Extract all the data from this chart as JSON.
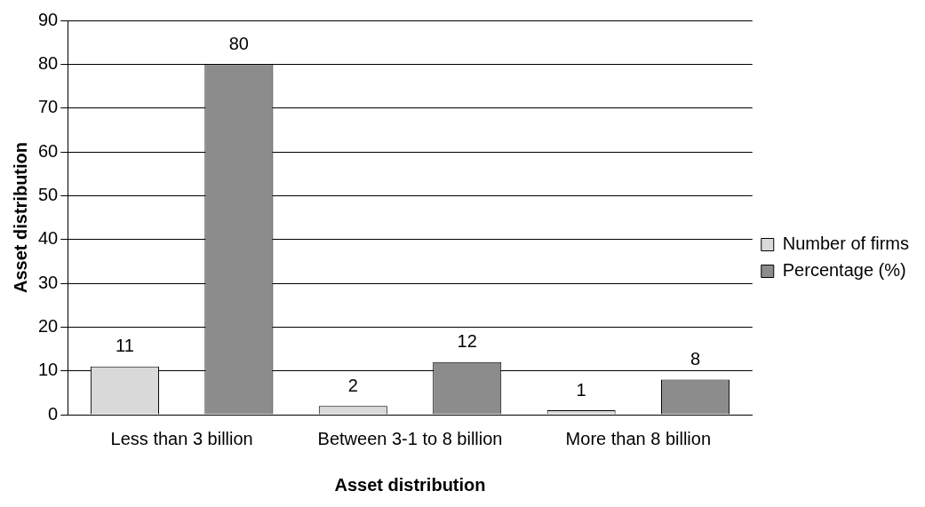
{
  "chart_data": {
    "type": "bar",
    "xlabel": "Asset distribution",
    "ylabel": "Asset distribution",
    "categories": [
      "Less than 3 billion",
      "Between 3-1 to 8 billion",
      "More than 8 billion"
    ],
    "series": [
      {
        "name": "Number of firms",
        "color": "#d9d9d9",
        "values": [
          11,
          2,
          1
        ]
      },
      {
        "name": "Percentage (%)",
        "color": "#8c8c8c",
        "values": [
          80,
          12,
          8
        ]
      }
    ],
    "ylim": [
      0,
      90
    ],
    "yticks": [
      0,
      10,
      20,
      30,
      40,
      50,
      60,
      70,
      80,
      90
    ],
    "grid": "y",
    "legend": "right",
    "data_labels": true
  }
}
